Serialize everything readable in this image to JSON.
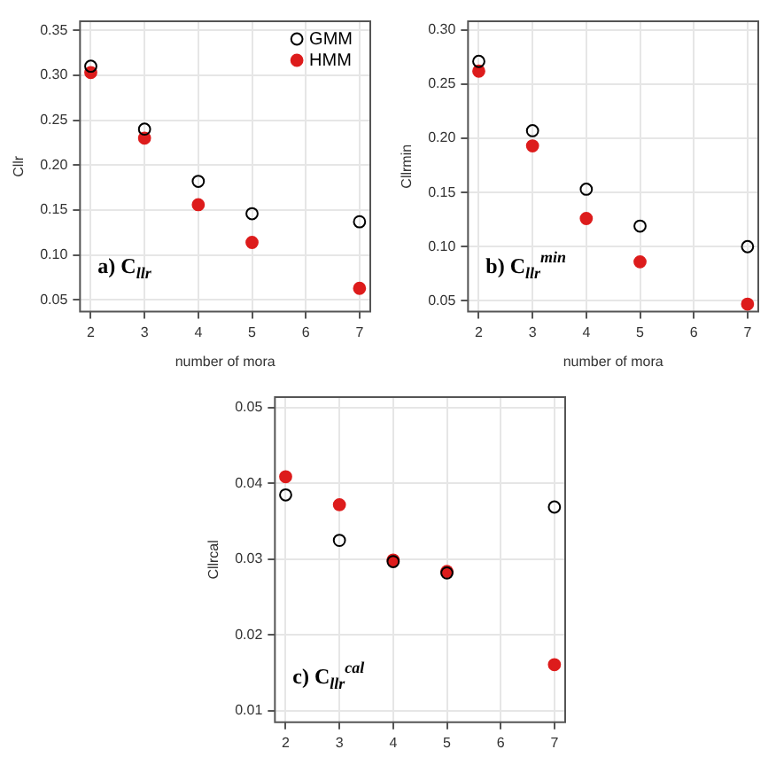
{
  "chart_data": [
    {
      "type": "scatter",
      "xlabel": "number of mora",
      "ylabel": "Cllr",
      "x": [
        2,
        3,
        4,
        5,
        7
      ],
      "xlim": [
        1.8,
        7.2
      ],
      "xticks": [
        2,
        3,
        4,
        5,
        6,
        7
      ],
      "ylim": [
        0.037,
        0.36
      ],
      "yticks": [
        0.05,
        {
          "value": 0.1,
          "label": "0.10"
        },
        0.15,
        {
          "value": 0.2,
          "label": "0.20"
        },
        0.25,
        {
          "value": 0.3,
          "label": "0.30"
        },
        0.35
      ],
      "grid": true,
      "legend": "top right",
      "marker": "circle",
      "annotations": [
        "a) C$_{llr}$"
      ],
      "series": [
        {
          "name": "GMM",
          "color": "#000000",
          "values": [
            0.31,
            0.24,
            0.182,
            0.146,
            0.137
          ]
        },
        {
          "name": "HMM",
          "color": "#dd1c1c",
          "values": [
            0.303,
            0.23,
            0.156,
            0.114,
            0.063
          ]
        }
      ]
    },
    {
      "type": "scatter",
      "xlabel": "number of mora",
      "ylabel": "Cllrmin",
      "x": [
        2,
        3,
        4,
        5,
        7
      ],
      "xlim": [
        1.8,
        7.2
      ],
      "xticks": [
        2,
        3,
        4,
        5,
        6,
        7
      ],
      "ylim": [
        0.04,
        0.308
      ],
      "yticks": [
        0.05,
        {
          "value": 0.1,
          "label": "0.10"
        },
        0.15,
        {
          "value": 0.2,
          "label": "0.20"
        },
        0.25,
        {
          "value": 0.3,
          "label": "0.30"
        }
      ],
      "grid": true,
      "marker": "circle",
      "annotations": [
        "b) C$_{llr}$$^{min}$"
      ],
      "series": [
        {
          "color": "#000000",
          "values": [
            0.271,
            0.207,
            0.153,
            0.119,
            0.1
          ]
        },
        {
          "color": "#dd1c1c",
          "values": [
            0.262,
            0.193,
            0.126,
            0.086,
            0.047
          ]
        }
      ]
    },
    {
      "type": "scatter",
      "ylabel": "Cllrcal",
      "x": [
        2,
        3,
        4,
        5,
        7
      ],
      "xlim": [
        1.8,
        7.2
      ],
      "xticks": [
        2,
        3,
        4,
        5,
        6,
        7
      ],
      "ylim": [
        0.0085,
        0.0514
      ],
      "yticks": [
        0.01,
        0.02,
        0.03,
        0.04,
        0.05
      ],
      "grid": true,
      "marker": "circle",
      "annotations": [
        "c) C$_{llr}$$^{cal}$"
      ],
      "series": [
        {
          "color": "#000000",
          "values": [
            0.0385,
            0.0325,
            0.0297,
            0.0282,
            0.0369
          ]
        },
        {
          "color": "#dd1c1c",
          "values": [
            0.0409,
            0.0372,
            0.0299,
            0.0284,
            0.0161
          ]
        }
      ]
    }
  ]
}
